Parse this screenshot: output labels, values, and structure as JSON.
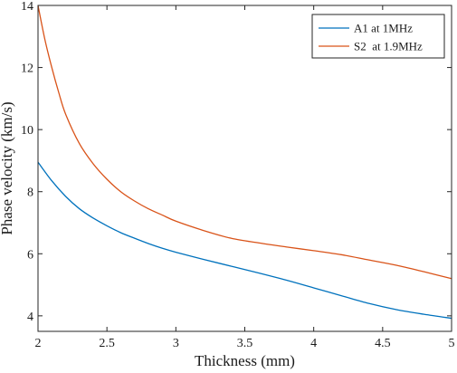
{
  "chart_data": {
    "type": "line",
    "title": "",
    "xlabel": "Thickness (mm)",
    "ylabel": "Phase velocity (km/s)",
    "xlim": [
      2,
      5
    ],
    "ylim": [
      3.5,
      14
    ],
    "x_ticks": [
      2,
      2.5,
      3,
      3.5,
      4,
      4.5,
      5
    ],
    "x_tick_labels": [
      "2",
      "2.5",
      "3",
      "3.5",
      "4",
      "4.5",
      "5"
    ],
    "y_ticks": [
      4,
      6,
      8,
      10,
      12,
      14
    ],
    "y_tick_labels": [
      "4",
      "6",
      "8",
      "10",
      "12",
      "14"
    ],
    "grid": false,
    "legend_position": "top-right",
    "series": [
      {
        "name": "A1 at 1MHz",
        "color": "#0072BD",
        "x": [
          2.0,
          2.1,
          2.2,
          2.3,
          2.4,
          2.5,
          2.6,
          2.7,
          2.8,
          2.9,
          3.0,
          3.2,
          3.4,
          3.6,
          3.8,
          4.0,
          4.2,
          4.4,
          4.6,
          4.8,
          5.0
        ],
        "y": [
          8.95,
          8.35,
          7.85,
          7.45,
          7.15,
          6.9,
          6.68,
          6.5,
          6.33,
          6.18,
          6.05,
          5.82,
          5.6,
          5.38,
          5.15,
          4.9,
          4.65,
          4.4,
          4.2,
          4.05,
          3.92
        ]
      },
      {
        "name": "S2  at 1.9MHz",
        "color": "#D95319",
        "x": [
          2.0,
          2.05,
          2.1,
          2.15,
          2.2,
          2.3,
          2.4,
          2.5,
          2.6,
          2.7,
          2.8,
          2.9,
          3.0,
          3.2,
          3.4,
          3.6,
          3.8,
          4.0,
          4.2,
          4.4,
          4.6,
          4.8,
          5.0
        ],
        "y": [
          14.0,
          12.9,
          12.0,
          11.2,
          10.5,
          9.55,
          8.9,
          8.4,
          8.0,
          7.7,
          7.45,
          7.25,
          7.05,
          6.75,
          6.5,
          6.35,
          6.22,
          6.1,
          5.97,
          5.8,
          5.63,
          5.42,
          5.2
        ]
      }
    ]
  }
}
